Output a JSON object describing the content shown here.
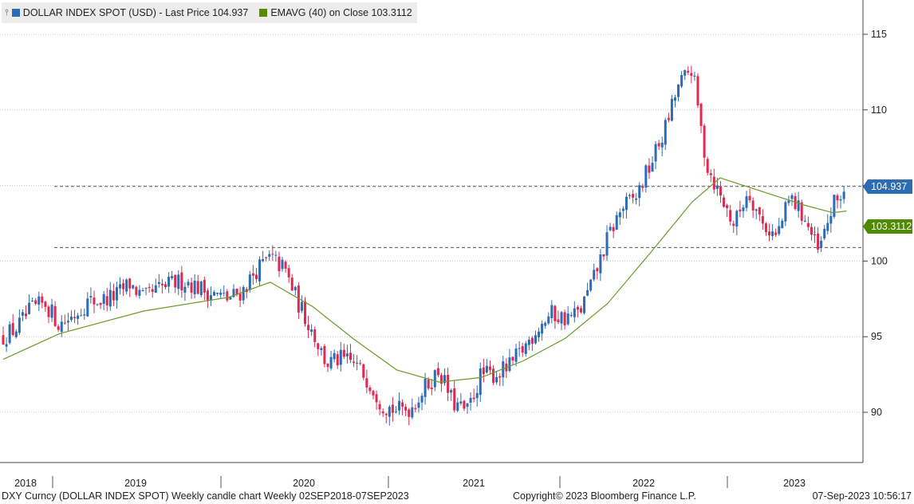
{
  "legend": {
    "pin_icon": "pin-icon",
    "series1": {
      "label": "DOLLAR INDEX SPOT (USD) - Last Price 104.937",
      "color": "#2b6cb5"
    },
    "series2": {
      "label": "EMAVG (40)  on Close 103.3112",
      "color": "#5a8a00"
    }
  },
  "tags": {
    "last": {
      "text": "104.937",
      "color": "#2b6cb5"
    },
    "ema": {
      "text": "103.3112",
      "color": "#4f8a00"
    }
  },
  "footer": {
    "left": "DXY Curncy (DOLLAR INDEX SPOT) Weekly candle chart  Weekly 02SEP2018-07SEP2023",
    "center": "Copyright© 2023 Bloomberg Finance L.P.",
    "right": "07-Sep-2023 10:56:17"
  },
  "colors": {
    "up": "#2b6cb5",
    "down": "#e0294f",
    "ema": "#6a9a2a",
    "grid": "#c8c8c8"
  },
  "chart_data": {
    "type": "candlestick",
    "title": "DOLLAR INDEX SPOT (USD)",
    "frequency": "Weekly",
    "range": "02SEP2018-07SEP2023",
    "ylim": [
      87,
      117
    ],
    "yticks": [
      90,
      95,
      100,
      105,
      110,
      115
    ],
    "x_labels": [
      "2018",
      "2019",
      "2020",
      "2021",
      "2022",
      "2023"
    ],
    "last_price": 104.937,
    "ema_last": 103.3112,
    "reference_lines": [
      104.937,
      100.9
    ],
    "close_path": [
      [
        "2018-09",
        95.0
      ],
      [
        "2018-10",
        95.6
      ],
      [
        "2018-11",
        96.8
      ],
      [
        "2018-12",
        97.2
      ],
      [
        "2019-01",
        95.8
      ],
      [
        "2019-02",
        96.4
      ],
      [
        "2019-03",
        97.3
      ],
      [
        "2019-04",
        97.4
      ],
      [
        "2019-05",
        97.7
      ],
      [
        "2019-06",
        98.5
      ],
      [
        "2019-07",
        97.5
      ],
      [
        "2019-08",
        98.1
      ],
      [
        "2019-09",
        98.5
      ],
      [
        "2019-10",
        98.7
      ],
      [
        "2019-11",
        98.2
      ],
      [
        "2019-12",
        97.8
      ],
      [
        "2020-01",
        97.5
      ],
      [
        "2020-02",
        98.0
      ],
      [
        "2020-03",
        99.4
      ],
      [
        "2020-04",
        100.2
      ],
      [
        "2020-05",
        99.5
      ],
      [
        "2020-06",
        97.2
      ],
      [
        "2020-07",
        95.4
      ],
      [
        "2020-08",
        93.2
      ],
      [
        "2020-09",
        93.5
      ],
      [
        "2020-10",
        93.2
      ],
      [
        "2020-11",
        92.1
      ],
      [
        "2020-12",
        90.5
      ],
      [
        "2021-01",
        90.1
      ],
      [
        "2021-02",
        90.3
      ],
      [
        "2021-03",
        91.6
      ],
      [
        "2021-04",
        92.8
      ],
      [
        "2021-05",
        90.6
      ],
      [
        "2021-06",
        90.0
      ],
      [
        "2021-07",
        92.5
      ],
      [
        "2021-08",
        92.5
      ],
      [
        "2021-09",
        93.0
      ],
      [
        "2021-10",
        94.2
      ],
      [
        "2021-11",
        95.6
      ],
      [
        "2021-12",
        96.5
      ],
      [
        "2022-01",
        96.2
      ],
      [
        "2022-02",
        96.6
      ],
      [
        "2022-03",
        98.8
      ],
      [
        "2022-04",
        101.5
      ],
      [
        "2022-05",
        103.5
      ],
      [
        "2022-06",
        104.2
      ],
      [
        "2022-07",
        106.3
      ],
      [
        "2022-08",
        108.5
      ],
      [
        "2022-09",
        111.5
      ],
      [
        "2022-10",
        112.8
      ],
      [
        "2022-11",
        106.5
      ],
      [
        "2022-12",
        104.3
      ],
      [
        "2023-01",
        102.4
      ],
      [
        "2023-02",
        104.7
      ],
      [
        "2023-03",
        102.5
      ],
      [
        "2023-04",
        101.6
      ],
      [
        "2023-05",
        104.2
      ],
      [
        "2023-06",
        102.9
      ],
      [
        "2023-07",
        100.5
      ],
      [
        "2023-08",
        103.6
      ],
      [
        "2023-09",
        104.937
      ]
    ],
    "ema_path": [
      [
        "2018-09",
        93.5
      ],
      [
        "2019-01",
        95.2
      ],
      [
        "2019-07",
        96.7
      ],
      [
        "2020-01",
        97.6
      ],
      [
        "2020-04",
        98.6
      ],
      [
        "2020-07",
        97.0
      ],
      [
        "2020-10",
        94.8
      ],
      [
        "2021-01",
        92.8
      ],
      [
        "2021-04",
        92.0
      ],
      [
        "2021-07",
        92.3
      ],
      [
        "2021-10",
        93.4
      ],
      [
        "2022-01",
        94.9
      ],
      [
        "2022-04",
        97.2
      ],
      [
        "2022-07",
        100.5
      ],
      [
        "2022-10",
        103.9
      ],
      [
        "2022-12",
        105.5
      ],
      [
        "2023-03",
        104.6
      ],
      [
        "2023-06",
        103.7
      ],
      [
        "2023-08",
        103.2
      ],
      [
        "2023-09",
        103.3112
      ]
    ]
  }
}
